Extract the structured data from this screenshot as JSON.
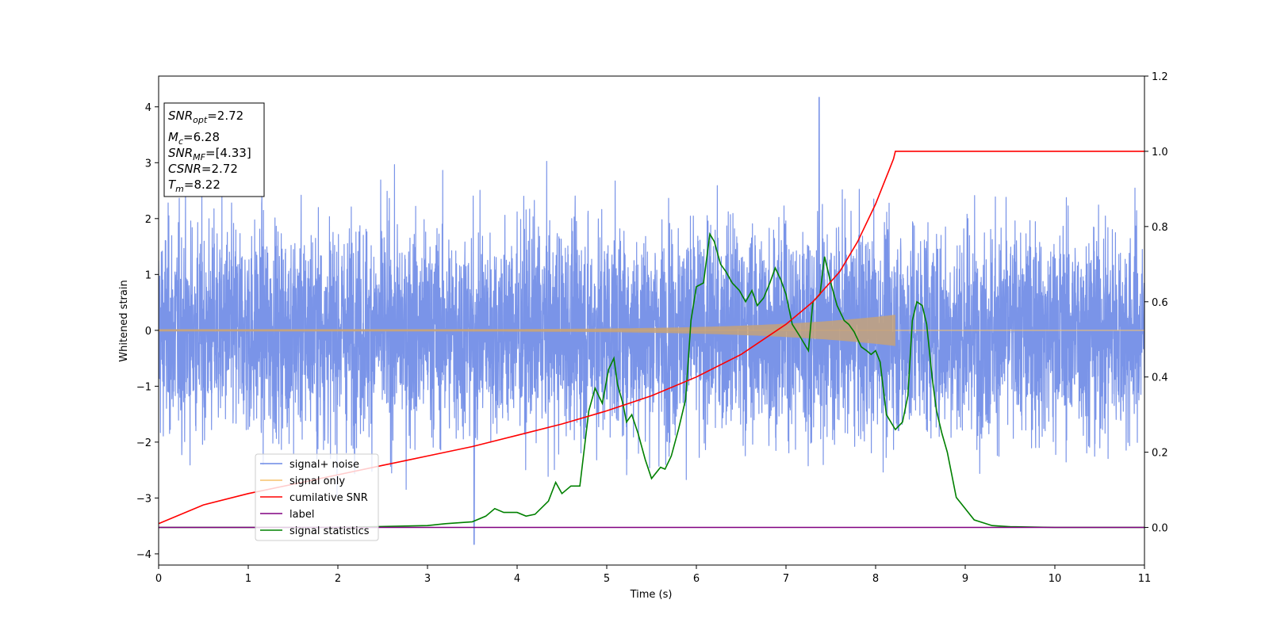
{
  "chart_data": {
    "type": "line",
    "xlabel": "Time (s)",
    "ylabel": "Whitened strain",
    "xlim": [
      0,
      11
    ],
    "ylim": [
      -4.2,
      4.55
    ],
    "y2lim": [
      -0.1,
      1.2
    ],
    "x_ticks": [
      "0",
      "1",
      "2",
      "3",
      "4",
      "5",
      "6",
      "7",
      "8",
      "9",
      "10",
      "11"
    ],
    "y_ticks": [
      "−4",
      "−3",
      "−2",
      "−1",
      "0",
      "1",
      "2",
      "3",
      "4"
    ],
    "y2_ticks": [
      "0.0",
      "0.2",
      "0.4",
      "0.6",
      "0.8",
      "1.0",
      "1.2"
    ],
    "grid": false,
    "legend_position": "lower-left",
    "colors": {
      "noise": "#6b88e6",
      "signal": "#f5c26b",
      "cumulative": "#ff0000",
      "label": "#800080",
      "statistics": "#008000"
    },
    "annotation": {
      "snr_opt_main": "SNR",
      "snr_opt_sub": "opt",
      "snr_opt_val": "=2.72",
      "mc_main": "M",
      "mc_sub": "c",
      "mc_val": "=6.28",
      "snr_mf_main": "SNR",
      "snr_mf_sub": "MF",
      "snr_mf_val": "=[4.33]",
      "csnr_main": "CSNR",
      "csnr_val": "=2.72",
      "tm_main": "T",
      "tm_sub": "m",
      "tm_val": "=8.22"
    },
    "series": [
      {
        "name": "signal+ noise",
        "axis": "left",
        "kind": "noise",
        "description_values": {
          "x_range": [
            0,
            11
          ],
          "approx_std": 0.95,
          "peak": 4.17,
          "peak_x": 7.37,
          "trough": -3.83,
          "trough_x": 3.52
        }
      },
      {
        "name": "signal only",
        "axis": "left",
        "kind": "chirp",
        "chirp": {
          "t_start": 0,
          "t_end": 8.22,
          "amp_start": 0.02,
          "amp_end": 0.28
        }
      },
      {
        "name": "cumilative SNR",
        "axis": "right",
        "x": [
          0,
          0.5,
          1,
          1.5,
          2,
          2.5,
          3,
          3.5,
          4,
          4.5,
          5,
          5.5,
          6,
          6.5,
          7,
          7.3,
          7.6,
          7.8,
          8.0,
          8.1,
          8.15,
          8.2,
          8.22,
          11
        ],
        "y": [
          0.01,
          0.06,
          0.09,
          0.115,
          0.14,
          0.165,
          0.19,
          0.215,
          0.245,
          0.275,
          0.31,
          0.35,
          0.4,
          0.46,
          0.54,
          0.6,
          0.68,
          0.76,
          0.86,
          0.92,
          0.95,
          0.98,
          1.0,
          1.0
        ]
      },
      {
        "name": "label",
        "axis": "right",
        "x": [
          0,
          11
        ],
        "y": [
          0.0,
          0.0
        ]
      },
      {
        "name": "signal statistics",
        "axis": "right",
        "x": [
          0,
          1,
          2,
          3,
          3.2,
          3.5,
          3.65,
          3.75,
          3.85,
          4.0,
          4.1,
          4.2,
          4.35,
          4.43,
          4.5,
          4.6,
          4.7,
          4.8,
          4.87,
          4.95,
          5.02,
          5.08,
          5.12,
          5.18,
          5.22,
          5.28,
          5.35,
          5.43,
          5.5,
          5.6,
          5.65,
          5.72,
          5.8,
          5.88,
          5.94,
          6.0,
          6.08,
          6.15,
          6.2,
          6.27,
          6.33,
          6.4,
          6.48,
          6.55,
          6.62,
          6.68,
          6.75,
          6.82,
          6.88,
          6.94,
          7.0,
          7.07,
          7.15,
          7.25,
          7.3,
          7.38,
          7.43,
          7.5,
          7.57,
          7.65,
          7.7,
          7.76,
          7.84,
          7.9,
          7.95,
          8.0,
          8.05,
          8.12,
          8.22,
          8.3,
          8.36,
          8.41,
          8.46,
          8.52,
          8.57,
          8.63,
          8.68,
          8.74,
          8.8,
          8.9,
          9.1,
          9.3,
          9.5,
          10,
          11
        ],
        "y": [
          0.0,
          0.0,
          0.0,
          0.005,
          0.01,
          0.015,
          0.03,
          0.05,
          0.04,
          0.04,
          0.03,
          0.035,
          0.07,
          0.12,
          0.09,
          0.11,
          0.11,
          0.31,
          0.37,
          0.33,
          0.42,
          0.45,
          0.38,
          0.33,
          0.28,
          0.3,
          0.25,
          0.18,
          0.13,
          0.16,
          0.155,
          0.19,
          0.26,
          0.34,
          0.55,
          0.64,
          0.65,
          0.78,
          0.76,
          0.7,
          0.68,
          0.65,
          0.63,
          0.6,
          0.63,
          0.59,
          0.61,
          0.65,
          0.69,
          0.66,
          0.62,
          0.54,
          0.51,
          0.47,
          0.6,
          0.62,
          0.72,
          0.65,
          0.59,
          0.55,
          0.54,
          0.52,
          0.48,
          0.47,
          0.46,
          0.47,
          0.44,
          0.3,
          0.26,
          0.28,
          0.35,
          0.55,
          0.6,
          0.59,
          0.54,
          0.4,
          0.31,
          0.25,
          0.2,
          0.08,
          0.02,
          0.005,
          0.002,
          0.0,
          0.0
        ]
      }
    ]
  }
}
